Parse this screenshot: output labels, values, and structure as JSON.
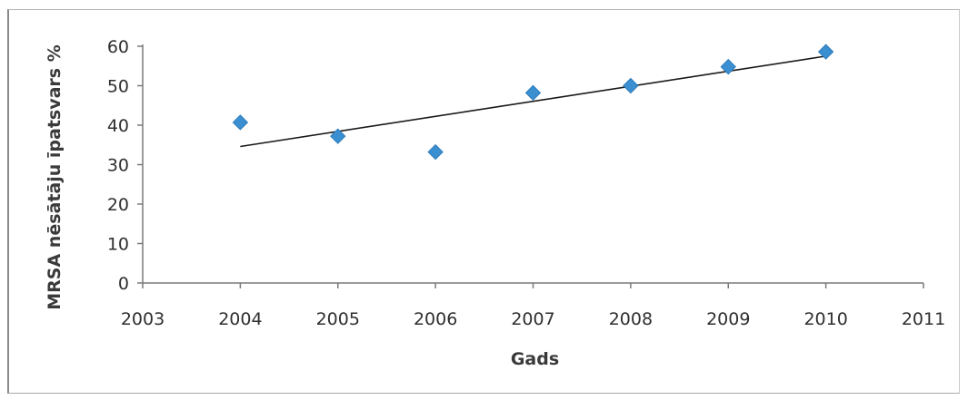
{
  "chart_data": {
    "type": "scatter",
    "title": "",
    "xlabel": "Gads",
    "ylabel": "MRSA nēsātāju īpatsvars %",
    "xlim": [
      2003,
      2011
    ],
    "ylim": [
      0,
      60
    ],
    "x_ticks": [
      2003,
      2004,
      2005,
      2006,
      2007,
      2008,
      2009,
      2010,
      2011
    ],
    "y_ticks": [
      0,
      10,
      20,
      30,
      40,
      50,
      60
    ],
    "grid": false,
    "legend": "none",
    "marker_color": "#3a8fd0",
    "line_color": "#1a1a1a",
    "series": [
      {
        "x": [
          2004,
          2005,
          2006,
          2007,
          2008,
          2009,
          2010
        ],
        "y": [
          40.7,
          37.2,
          33.2,
          48.2,
          50.0,
          54.8,
          58.6
        ]
      }
    ],
    "trendline": {
      "type": "linear",
      "x": [
        2004,
        2010
      ],
      "y": [
        34.6,
        57.5
      ]
    }
  }
}
